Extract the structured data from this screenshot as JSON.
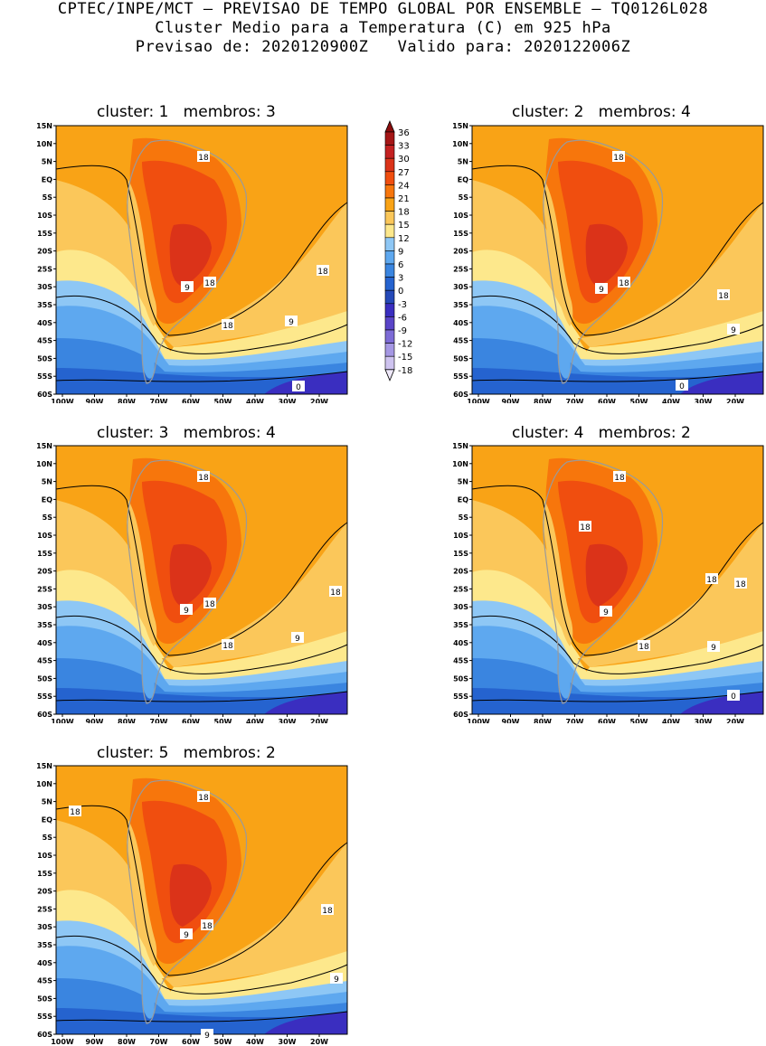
{
  "header": {
    "line1": "CPTEC/INPE/MCT – PREVISAO DE TEMPO GLOBAL POR ENSEMBLE – TQ0126L028",
    "line2": "Cluster Medio para a Temperatura (C) em 925 hPa",
    "line3": "Previsao de: 2020120900Z   Valido para: 2020122006Z"
  },
  "axes": {
    "lat_labels": [
      "15N",
      "10N",
      "5N",
      "EQ",
      "5S",
      "10S",
      "15S",
      "20S",
      "25S",
      "30S",
      "35S",
      "40S",
      "45S",
      "50S",
      "55S",
      "60S"
    ],
    "lon_labels": [
      "100W",
      "90W",
      "80W",
      "70W",
      "60W",
      "50W",
      "40W",
      "30W",
      "20W"
    ]
  },
  "colorbar": {
    "labels": [
      "36",
      "33",
      "30",
      "27",
      "24",
      "21",
      "18",
      "15",
      "12",
      "9",
      "6",
      "3",
      "0",
      "-3",
      "-6",
      "-9",
      "-12",
      "-15",
      "-18"
    ],
    "colors": [
      "#8b0d0d",
      "#a51616",
      "#c42121",
      "#db3319",
      "#f04e0f",
      "#f7760c",
      "#f9a316",
      "#fbc75a",
      "#fde88c",
      "#8ec7f5",
      "#5ea8ef",
      "#3a85e0",
      "#2563cf",
      "#2549b8",
      "#3a2ec0",
      "#5a45c8",
      "#7d6bd6",
      "#a597e3",
      "#cec3ef",
      "#efe9fa"
    ]
  },
  "panels": [
    {
      "title": "cluster: 1   membros: 3",
      "labels": [
        "18",
        "18",
        "18",
        "18",
        "9",
        "9",
        "0"
      ]
    },
    {
      "title": "cluster: 2   membros: 4",
      "labels": [
        "18",
        "18",
        "18",
        "9",
        "9",
        "0"
      ]
    },
    {
      "title": "cluster: 3   membros: 4",
      "labels": [
        "18",
        "18",
        "18",
        "18",
        "9",
        "9"
      ]
    },
    {
      "title": "cluster: 4   membros: 2",
      "labels": [
        "18",
        "18",
        "18",
        "18",
        "18",
        "9",
        "9",
        "0"
      ]
    },
    {
      "title": "cluster: 5   membros: 2",
      "labels": [
        "18",
        "18",
        "18",
        "18",
        "9",
        "9",
        "9"
      ]
    }
  ]
}
